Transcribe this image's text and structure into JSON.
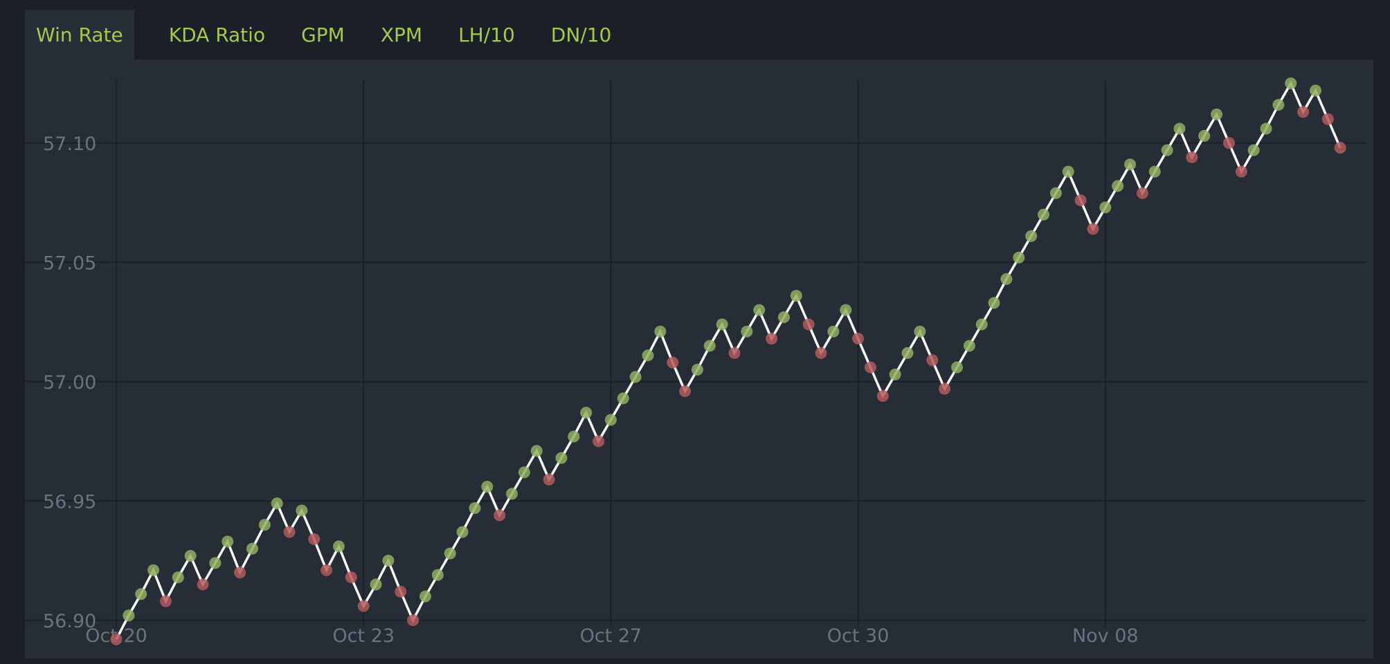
{
  "tabs": [
    {
      "label": "Win Rate",
      "active": true
    },
    {
      "label": "KDA Ratio",
      "active": false
    },
    {
      "label": "GPM",
      "active": false
    },
    {
      "label": "XPM",
      "active": false
    },
    {
      "label": "LH/10",
      "active": false
    },
    {
      "label": "DN/10",
      "active": false
    }
  ],
  "colors": {
    "tab_text": "#a6c94a",
    "line": "#ffffff",
    "up_marker": "#8fae60",
    "down_marker": "#b25a5a",
    "grid": "#1b2028",
    "axis_text": "#6b737e"
  },
  "chart_data": {
    "type": "line",
    "title": "",
    "xlabel": "",
    "ylabel": "",
    "y_ticks": [
      "56.90",
      "56.95",
      "57.00",
      "57.05",
      "57.10"
    ],
    "ylim": [
      56.884,
      57.135
    ],
    "x_ticks": [
      {
        "label": "Oct 20",
        "index": 0
      },
      {
        "label": "Oct 23",
        "index": 20
      },
      {
        "label": "Oct 27",
        "index": 40
      },
      {
        "label": "Oct 30",
        "index": 60
      },
      {
        "label": "Nov 08",
        "index": 80
      }
    ],
    "grid": true,
    "marker_colors": "green when value rises, red when value falls",
    "values": [
      56.892,
      56.902,
      56.911,
      56.921,
      56.908,
      56.918,
      56.927,
      56.915,
      56.924,
      56.933,
      56.92,
      56.93,
      56.94,
      56.949,
      56.937,
      56.946,
      56.934,
      56.921,
      56.931,
      56.918,
      56.906,
      56.915,
      56.925,
      56.912,
      56.9,
      56.91,
      56.919,
      56.928,
      56.937,
      56.947,
      56.956,
      56.944,
      56.953,
      56.962,
      56.971,
      56.959,
      56.968,
      56.977,
      56.987,
      56.975,
      56.984,
      56.993,
      57.002,
      57.011,
      57.021,
      57.008,
      56.996,
      57.005,
      57.015,
      57.024,
      57.012,
      57.021,
      57.03,
      57.018,
      57.027,
      57.036,
      57.024,
      57.012,
      57.021,
      57.03,
      57.018,
      57.006,
      56.994,
      57.003,
      57.012,
      57.021,
      57.009,
      56.997,
      57.006,
      57.015,
      57.024,
      57.033,
      57.043,
      57.052,
      57.061,
      57.07,
      57.079,
      57.088,
      57.076,
      57.064,
      57.073,
      57.082,
      57.091,
      57.079,
      57.088,
      57.097,
      57.106,
      57.094,
      57.103,
      57.112,
      57.1,
      57.088,
      57.097,
      57.106,
      57.116,
      57.125,
      57.113,
      57.122,
      57.11,
      57.098
    ]
  }
}
